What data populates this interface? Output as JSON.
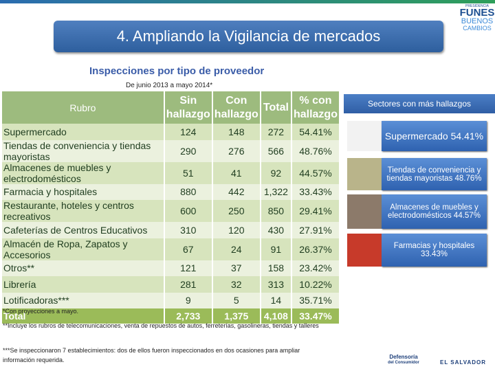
{
  "header": {
    "title": "4. Ampliando  la  Vigilancia de mercados"
  },
  "logo": {
    "top": "PRESIDENCIA",
    "name": "FUNES",
    "slogan1": "BUENOS",
    "slogan2": "CAMBIOS"
  },
  "table": {
    "title": "Inspecciones por tipo de proveedor",
    "period": "De junio 2013 a mayo 2014*",
    "columns": [
      "Rubro",
      "Sin hallazgo",
      "Con hallazgo",
      "Total",
      "% con hallazgo"
    ],
    "rows": [
      [
        "Supermercado",
        "124",
        "148",
        "272",
        "54.41%"
      ],
      [
        "Tiendas de conveniencia y tiendas mayoristas",
        "290",
        "276",
        "566",
        "48.76%"
      ],
      [
        "Almacenes de muebles y electrodomésticos",
        "51",
        "41",
        "92",
        "44.57%"
      ],
      [
        "Farmacia y hospitales",
        "880",
        "442",
        "1,322",
        "33.43%"
      ],
      [
        "Restaurante, hoteles y centros recreativos",
        "600",
        "250",
        "850",
        "29.41%"
      ],
      [
        "Cafeterías de Centros Educativos",
        "310",
        "120",
        "430",
        "27.91%"
      ],
      [
        "Almacén de Ropa, Zapatos y Accesorios",
        "67",
        "24",
        "91",
        "26.37%"
      ],
      [
        "Otros**",
        "121",
        "37",
        "158",
        "23.42%"
      ],
      [
        "Librería",
        "281",
        "32",
        "313",
        "10.22%"
      ],
      [
        "Lotificadoras***",
        "9",
        "5",
        "14",
        "35.71%"
      ]
    ],
    "total": [
      "Total",
      "2,733",
      "1,375",
      "4,108",
      "33.47%"
    ]
  },
  "notes": [
    "*Con proyecciones a mayo.",
    "**Incluye los rubros de telecomunicaciones, venta de repuestos de autos, ferreterías, gasolineras, tiendas y talleres",
    "***Se inspeccionaron 7 establecimientos: dos de ellos fueron inspeccionados en dos ocasiones para ampliar información requerida."
  ],
  "sectors": {
    "title": "Sectores con más hallazgos",
    "items": [
      "Supermercado 54.41%",
      "Tiendas de conveniencia y tiendas mayoristas 48.76%",
      "Almacenes de muebles y electrodomésticos 44.57%",
      "Farmacias y hospitales 33.43%"
    ]
  },
  "footer": {
    "agency1": "Defensoría",
    "agency2": "del Consumidor",
    "country": "EL SALVADOR"
  }
}
